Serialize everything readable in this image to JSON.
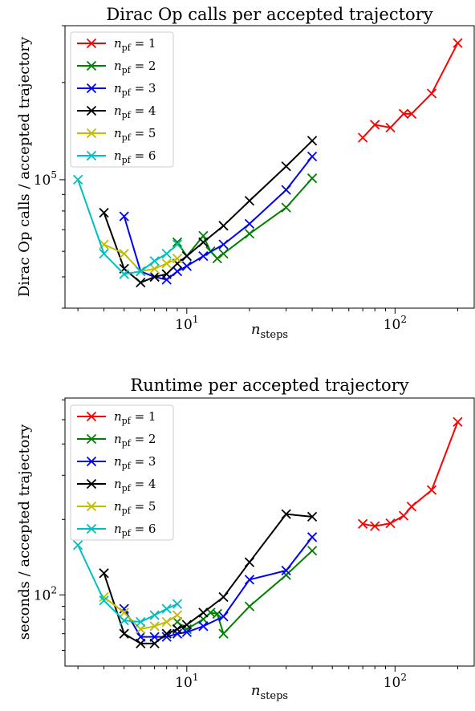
{
  "chart_data": [
    {
      "type": "line",
      "title": "Dirac Op calls per accepted trajectory",
      "xlabel": "n_steps",
      "ylabel": "Dirac Op calls / accepted trajectory",
      "xscale": "log",
      "yscale": "log",
      "xlim": [
        2.6,
        240
      ],
      "ylim": [
        40000,
        300000
      ],
      "xticks": [
        {
          "value": 10,
          "base": "10",
          "exp": "1"
        },
        {
          "value": 100,
          "base": "10",
          "exp": "2"
        }
      ],
      "yticks": [
        {
          "value": 100000,
          "base": "10",
          "exp": "5"
        }
      ],
      "legend": "top-left",
      "series": [
        {
          "name": "n_pf = 1",
          "label_main": "n",
          "label_sub": "pf",
          "label_eq": " = 1",
          "color": "#ff0000",
          "x": [
            70,
            80,
            95,
            110,
            120,
            150,
            200
          ],
          "y": [
            135000,
            148000,
            145000,
            160000,
            160000,
            185000,
            265000
          ]
        },
        {
          "name": "n_pf = 2",
          "label_main": "n",
          "label_sub": "pf",
          "label_eq": " = 2",
          "color": "#008000",
          "x": [
            9,
            10,
            12,
            13,
            14,
            15,
            20,
            30,
            40
          ],
          "y": [
            64000,
            58000,
            67000,
            60000,
            57000,
            59000,
            68000,
            82000,
            101000
          ]
        },
        {
          "name": "n_pf = 3",
          "label_main": "n",
          "label_sub": "pf",
          "label_eq": " = 3",
          "color": "#0000ff",
          "x": [
            5,
            6,
            7,
            8,
            9,
            10,
            12,
            15,
            20,
            30,
            40
          ],
          "y": [
            77000,
            52000,
            50000,
            49000,
            52000,
            54000,
            58000,
            63000,
            73000,
            93000,
            118000
          ]
        },
        {
          "name": "n_pf = 4",
          "label_main": "n",
          "label_sub": "pf",
          "label_eq": " = 4",
          "color": "#000000",
          "x": [
            4,
            5,
            6,
            7,
            8,
            9,
            10,
            12,
            15,
            20,
            30,
            40
          ],
          "y": [
            79000,
            53000,
            48000,
            50000,
            51000,
            55000,
            58000,
            64000,
            72000,
            86000,
            110000,
            132000
          ]
        },
        {
          "name": "n_pf = 5",
          "label_main": "n",
          "label_sub": "pf",
          "label_eq": " = 5",
          "color": "#bfbf00",
          "x": [
            4,
            5,
            6,
            7,
            8,
            9
          ],
          "y": [
            63000,
            59000,
            52000,
            53000,
            55000,
            57000
          ]
        },
        {
          "name": "n_pf = 6",
          "label_main": "n",
          "label_sub": "pf",
          "label_eq": " = 6",
          "color": "#00bfbf",
          "x": [
            3,
            4,
            5,
            6,
            7,
            8,
            9
          ],
          "y": [
            100000,
            59000,
            51000,
            52000,
            56000,
            59000,
            63000
          ]
        }
      ]
    },
    {
      "type": "line",
      "title": "Runtime per accepted trajectory",
      "xlabel": "n_steps",
      "ylabel": "seconds / accepted trajectory",
      "xscale": "log",
      "yscale": "log",
      "xlim": [
        2.6,
        240
      ],
      "ylim": [
        52,
        610
      ],
      "xticks": [
        {
          "value": 10,
          "base": "10",
          "exp": "1"
        },
        {
          "value": 100,
          "base": "10",
          "exp": "2"
        }
      ],
      "yticks": [
        {
          "value": 100,
          "base": "10",
          "exp": "2"
        }
      ],
      "legend": "top-left",
      "series": [
        {
          "name": "n_pf = 1",
          "label_main": "n",
          "label_sub": "pf",
          "label_eq": " = 1",
          "color": "#ff0000",
          "x": [
            70,
            80,
            95,
            110,
            120,
            150,
            200
          ],
          "y": [
            192,
            188,
            193,
            207,
            225,
            262,
            490
          ]
        },
        {
          "name": "n_pf = 2",
          "label_main": "n",
          "label_sub": "pf",
          "label_eq": " = 2",
          "color": "#008000",
          "x": [
            9,
            10,
            12,
            13,
            14,
            15,
            20,
            30,
            40
          ],
          "y": [
            78,
            73,
            80,
            85,
            84,
            70,
            90,
            120,
            150
          ]
        },
        {
          "name": "n_pf = 3",
          "label_main": "n",
          "label_sub": "pf",
          "label_eq": " = 3",
          "color": "#0000ff",
          "x": [
            5,
            6,
            7,
            8,
            9,
            10,
            12,
            15,
            20,
            30,
            40
          ],
          "y": [
            88,
            68,
            68,
            68,
            70,
            71,
            75,
            82,
            115,
            125,
            170
          ]
        },
        {
          "name": "n_pf = 4",
          "label_main": "n",
          "label_sub": "pf",
          "label_eq": " = 4",
          "color": "#000000",
          "x": [
            4,
            5,
            6,
            7,
            8,
            9,
            10,
            12,
            15,
            20,
            30,
            40
          ],
          "y": [
            122,
            70,
            64,
            64,
            70,
            73,
            76,
            85,
            98,
            135,
            210,
            205
          ]
        },
        {
          "name": "n_pf = 5",
          "label_main": "n",
          "label_sub": "pf",
          "label_eq": " = 5",
          "color": "#bfbf00",
          "x": [
            4,
            5,
            6,
            7,
            8,
            9
          ],
          "y": [
            98,
            85,
            73,
            75,
            78,
            83
          ]
        },
        {
          "name": "n_pf = 6",
          "label_main": "n",
          "label_sub": "pf",
          "label_eq": " = 6",
          "color": "#00bfbf",
          "x": [
            3,
            4,
            5,
            6,
            7,
            8,
            9
          ],
          "y": [
            158,
            95,
            79,
            78,
            83,
            88,
            92
          ]
        }
      ]
    }
  ]
}
